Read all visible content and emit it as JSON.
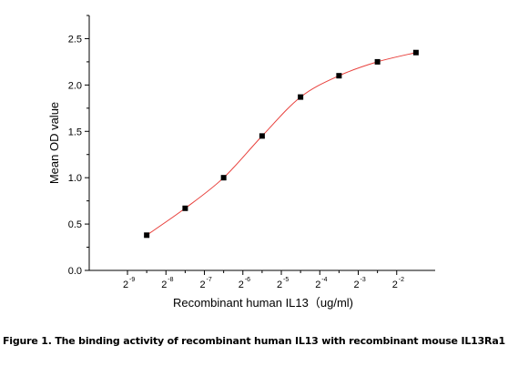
{
  "chart_data": {
    "type": "scatter",
    "xlabel": "Recombinant human IL13（ug/ml)",
    "ylabel": "Mean OD value",
    "x_scale": "log2",
    "x_tick_base": "2",
    "x_tick_exponents": [
      "-9",
      "-8",
      "-7",
      "-6",
      "-5",
      "-4",
      "-3",
      "-2"
    ],
    "x_tick_values": [
      0.001953,
      0.003906,
      0.007813,
      0.015625,
      0.03125,
      0.0625,
      0.125,
      0.25
    ],
    "xlim": [
      0.00098,
      0.5
    ],
    "ylim": [
      0,
      2.75
    ],
    "y_ticks": [
      "0.0",
      "0.5",
      "1.0",
      "1.5",
      "2.0",
      "2.5"
    ],
    "x": [
      0.002762,
      0.005524,
      0.011049,
      0.022097,
      0.044194,
      0.088388,
      0.176777,
      0.353553
    ],
    "y": [
      0.38,
      0.67,
      1.0,
      1.45,
      1.87,
      2.1,
      2.25,
      2.35
    ],
    "fit_curve": true,
    "marker_color": "#000000",
    "curve_color": "#e8403c"
  },
  "caption": "Figure 1. The binding activity of recombinant human IL13 with recombinant mouse IL13Ra1"
}
